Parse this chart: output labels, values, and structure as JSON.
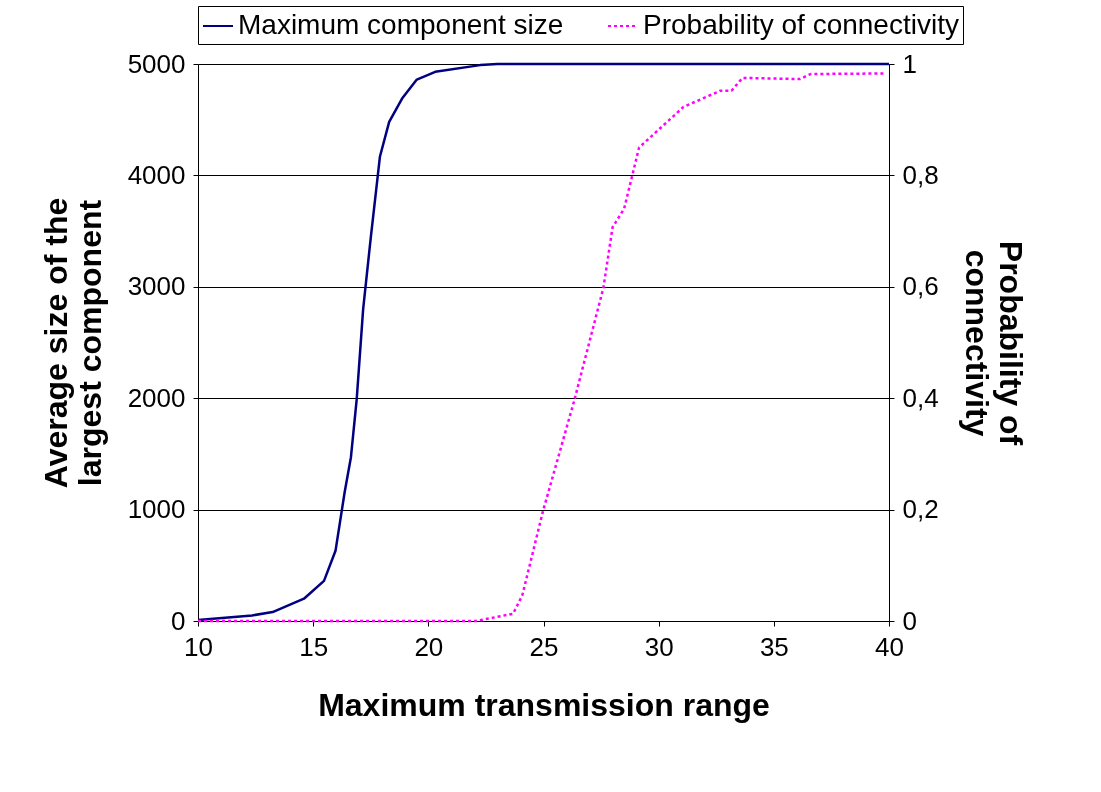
{
  "chart_data": {
    "type": "line",
    "xlabel": "Maximum transmission range",
    "ylabel": "Average size of the largest component",
    "y2label": "Probability of connectivity",
    "xlim": [
      10,
      40
    ],
    "xticks": [
      10,
      15,
      20,
      25,
      30,
      35,
      40
    ],
    "ylim": [
      0,
      5000
    ],
    "yticks": [
      0,
      1000,
      2000,
      3000,
      4000,
      5000
    ],
    "y2lim": [
      0,
      1
    ],
    "y2ticks": [
      {
        "value": 0,
        "label": "0"
      },
      {
        "value": 0.2,
        "label": "0,2"
      },
      {
        "value": 0.4,
        "label": "0,4"
      },
      {
        "value": 0.6,
        "label": "0,6"
      },
      {
        "value": 0.8,
        "label": "0,8"
      },
      {
        "value": 1,
        "label": "1"
      }
    ],
    "grid": "y",
    "legend": "top",
    "marker": "none",
    "series": [
      {
        "name": "Maximum component size",
        "color": "#000080",
        "line_style": "solid",
        "x": [
          10,
          12.35,
          13.24,
          14.6,
          15.47,
          15.97,
          16.37,
          16.64,
          16.89,
          17.17,
          17.5,
          17.9,
          18.3,
          18.86,
          19.5,
          20.3,
          22.25,
          23,
          40
        ],
        "values": [
          10,
          50,
          80,
          200,
          360,
          630,
          1160,
          1470,
          1990,
          2800,
          3440,
          4170,
          4480,
          4690,
          4860,
          4930,
          4990,
          5000,
          5000
        ]
      },
      {
        "name": "Probability of connectivity",
        "color": "#ff00ff",
        "line_style": "dotted",
        "axis": "y2",
        "x": [
          10,
          22.07,
          23.68,
          24.08,
          24.97,
          26.33,
          27.6,
          28.0,
          28.5,
          29.15,
          31.08,
          32.68,
          33.16,
          33.64,
          36.13,
          36.6,
          39.8
        ],
        "values": [
          0,
          0,
          0.013,
          0.046,
          0.196,
          0.395,
          0.598,
          0.707,
          0.74,
          0.85,
          0.923,
          0.952,
          0.952,
          0.975,
          0.973,
          0.982,
          0.983
        ]
      }
    ]
  }
}
